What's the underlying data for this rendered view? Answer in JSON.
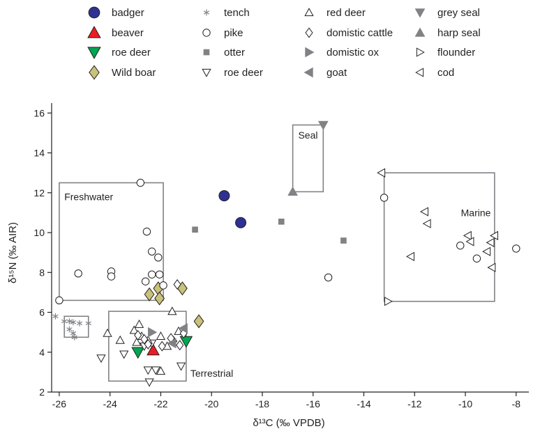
{
  "chart_data": {
    "type": "scatter",
    "xlabel": "δ¹³C (‰ VPDB)",
    "ylabel": "δ¹⁵N (‰ AIR)",
    "xlim": [
      -26.3,
      -7.5
    ],
    "ylim": [
      2,
      16.5
    ],
    "x_ticks": [
      -26,
      -24,
      -22,
      -20,
      -18,
      -16,
      -14,
      -12,
      -10,
      -8
    ],
    "y_ticks": [
      2,
      4,
      6,
      8,
      10,
      12,
      14,
      16
    ],
    "grid": false,
    "legend_position": "top",
    "legend": [
      {
        "key": "badger",
        "label": "badger"
      },
      {
        "key": "beaver",
        "label": "beaver"
      },
      {
        "key": "roe_deer_bone",
        "label": "roe deer"
      },
      {
        "key": "wild_boar",
        "label": "Wild boar"
      },
      {
        "key": "tench",
        "label": "tench"
      },
      {
        "key": "pike",
        "label": "pike"
      },
      {
        "key": "otter",
        "label": "otter"
      },
      {
        "key": "roe_deer",
        "label": "roe deer"
      },
      {
        "key": "red_deer",
        "label": "red deer"
      },
      {
        "key": "cattle",
        "label": "domistic cattle"
      },
      {
        "key": "ox",
        "label": "domistic ox"
      },
      {
        "key": "goat",
        "label": "goat"
      },
      {
        "key": "grey_seal",
        "label": "grey seal"
      },
      {
        "key": "harp_seal",
        "label": "harp seal"
      },
      {
        "key": "flounder",
        "label": "flounder"
      },
      {
        "key": "cod",
        "label": "cod"
      }
    ],
    "series": [
      {
        "key": "badger",
        "name": "badger",
        "marker": "circle",
        "fill": "#2e3192",
        "stroke": "#231f20",
        "points": [
          [
            -19.5,
            11.85
          ],
          [
            -18.85,
            10.5
          ]
        ]
      },
      {
        "key": "beaver",
        "name": "beaver",
        "marker": "triangle-up",
        "fill": "#ed1c24",
        "stroke": "#231f20",
        "points": [
          [
            -22.3,
            4.1
          ]
        ]
      },
      {
        "key": "roe_deer_bone",
        "name": "roe deer",
        "marker": "triangle-down",
        "fill": "#00a651",
        "stroke": "#231f20",
        "points": [
          [
            -22.9,
            4.0
          ],
          [
            -21.0,
            4.55
          ]
        ]
      },
      {
        "key": "wild_boar",
        "name": "Wild boar",
        "marker": "diamond",
        "fill": "#c8c27a",
        "stroke": "#231f20",
        "points": [
          [
            -22.45,
            6.9
          ],
          [
            -22.1,
            7.2
          ],
          [
            -22.05,
            6.7
          ],
          [
            -21.15,
            7.2
          ],
          [
            -20.5,
            5.55
          ]
        ]
      },
      {
        "key": "tench",
        "name": "tench",
        "marker": "asterisk",
        "fill": "none",
        "stroke": "#808285",
        "points": [
          [
            -26.15,
            5.8
          ],
          [
            -25.8,
            5.55
          ],
          [
            -25.6,
            5.55
          ],
          [
            -25.45,
            5.5
          ],
          [
            -25.2,
            5.45
          ],
          [
            -24.85,
            5.45
          ],
          [
            -25.6,
            5.15
          ],
          [
            -25.45,
            4.95
          ],
          [
            -25.4,
            4.75
          ]
        ]
      },
      {
        "key": "pike",
        "name": "pike",
        "marker": "circle",
        "fill": "#ffffff",
        "stroke": "#231f20",
        "points": [
          [
            -26.0,
            6.6
          ],
          [
            -25.25,
            7.95
          ],
          [
            -23.95,
            8.05
          ],
          [
            -23.95,
            7.8
          ],
          [
            -22.8,
            12.5
          ],
          [
            -22.55,
            10.05
          ],
          [
            -22.35,
            9.05
          ],
          [
            -22.1,
            8.75
          ],
          [
            -22.35,
            7.9
          ],
          [
            -22.05,
            7.9
          ],
          [
            -22.6,
            7.55
          ],
          [
            -21.9,
            7.35
          ],
          [
            -15.4,
            7.75
          ],
          [
            -13.2,
            11.75
          ],
          [
            -10.2,
            9.35
          ],
          [
            -9.55,
            8.7
          ],
          [
            -8.0,
            9.2
          ]
        ]
      },
      {
        "key": "otter",
        "name": "otter",
        "marker": "square",
        "fill": "#808285",
        "stroke": "#808285",
        "points": [
          [
            -20.65,
            10.15
          ],
          [
            -17.25,
            10.55
          ],
          [
            -14.8,
            9.6
          ]
        ]
      },
      {
        "key": "roe_deer",
        "name": "roe deer",
        "marker": "triangle-down-open",
        "fill": "#ffffff",
        "stroke": "#231f20",
        "points": [
          [
            -24.35,
            3.7
          ],
          [
            -23.45,
            3.9
          ],
          [
            -22.65,
            4.3
          ],
          [
            -22.35,
            4.45
          ],
          [
            -22.2,
            3.1
          ],
          [
            -22.5,
            3.1
          ],
          [
            -22.45,
            2.5
          ],
          [
            -21.2,
            3.3
          ]
        ]
      },
      {
        "key": "red_deer",
        "name": "red deer",
        "marker": "triangle-up-open",
        "fill": "#ffffff",
        "stroke": "#231f20",
        "points": [
          [
            -24.1,
            4.95
          ],
          [
            -23.6,
            4.6
          ],
          [
            -23.05,
            5.1
          ],
          [
            -22.85,
            5.4
          ],
          [
            -22.75,
            4.8
          ],
          [
            -22.5,
            4.6
          ],
          [
            -22.95,
            4.5
          ],
          [
            -22.0,
            4.8
          ],
          [
            -21.75,
            4.3
          ],
          [
            -21.3,
            5.05
          ],
          [
            -21.55,
            6.05
          ],
          [
            -22.0,
            3.05
          ]
        ]
      },
      {
        "key": "cattle",
        "name": "domistic cattle",
        "marker": "diamond-open",
        "fill": "#ffffff",
        "stroke": "#231f20",
        "points": [
          [
            -22.9,
            4.85
          ],
          [
            -22.65,
            4.65
          ],
          [
            -22.5,
            4.4
          ],
          [
            -21.95,
            4.3
          ],
          [
            -21.5,
            4.55
          ],
          [
            -21.25,
            4.35
          ],
          [
            -21.1,
            4.95
          ],
          [
            -21.35,
            7.4
          ],
          [
            -21.6,
            4.7
          ]
        ]
      },
      {
        "key": "ox",
        "name": "domistic ox",
        "marker": "triangle-right",
        "fill": "#808285",
        "stroke": "#808285",
        "points": [
          [
            -22.35,
            5.0
          ]
        ]
      },
      {
        "key": "goat",
        "name": "goat",
        "marker": "triangle-left",
        "fill": "#808285",
        "stroke": "#808285",
        "points": [
          [
            -21.55,
            4.45
          ],
          [
            -21.1,
            5.2
          ]
        ]
      },
      {
        "key": "grey_seal",
        "name": "grey seal",
        "marker": "triangle-down",
        "fill": "#808285",
        "stroke": "#808285",
        "points": [
          [
            -15.6,
            15.4
          ]
        ]
      },
      {
        "key": "harp_seal",
        "name": "harp seal",
        "marker": "triangle-up",
        "fill": "#808285",
        "stroke": "#808285",
        "points": [
          [
            -16.8,
            12.05
          ]
        ]
      },
      {
        "key": "flounder",
        "name": "flounder",
        "marker": "triangle-right-open",
        "fill": "#ffffff",
        "stroke": "#231f20",
        "points": [
          [
            -13.05,
            6.55
          ]
        ]
      },
      {
        "key": "cod",
        "name": "cod",
        "marker": "triangle-left-open",
        "fill": "#ffffff",
        "stroke": "#231f20",
        "points": [
          [
            -13.3,
            13.0
          ],
          [
            -11.6,
            11.05
          ],
          [
            -11.5,
            10.45
          ],
          [
            -12.15,
            8.8
          ],
          [
            -9.9,
            9.85
          ],
          [
            -9.8,
            9.55
          ],
          [
            -8.85,
            9.85
          ],
          [
            -9.0,
            9.5
          ],
          [
            -9.15,
            9.05
          ],
          [
            -8.95,
            8.25
          ]
        ]
      }
    ],
    "regions": [
      {
        "label": "Freshwater",
        "xmin": -26.0,
        "xmax": -21.9,
        "ymin": 6.6,
        "ymax": 12.5
      },
      {
        "label": "Terrestrial",
        "xmin": -24.05,
        "xmax": -21.0,
        "ymin": 2.55,
        "ymax": 6.05
      },
      {
        "label": "Seal",
        "xmin": -16.8,
        "xmax": -15.6,
        "ymin": 12.05,
        "ymax": 15.4
      },
      {
        "label": "Marine",
        "xmin": -13.2,
        "xmax": -8.85,
        "ymin": 6.55,
        "ymax": 13.0
      },
      {
        "label": "",
        "xmin": -25.8,
        "xmax": -24.85,
        "ymin": 4.75,
        "ymax": 5.8
      }
    ]
  }
}
